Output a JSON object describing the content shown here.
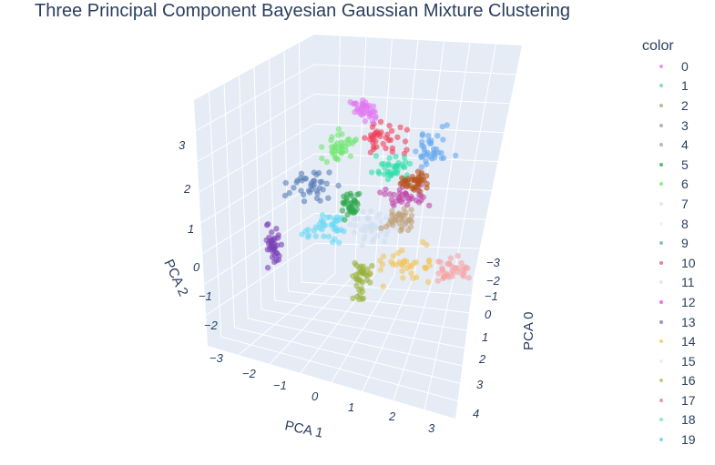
{
  "chart_data": {
    "type": "scatter",
    "title": "Three Principal Component Bayesian Gaussian Mixture Clustering",
    "axes": {
      "x": {
        "label": "PCA 0",
        "ticks": [
          "−3",
          "−2",
          "−1",
          "0",
          "1",
          "2",
          "3",
          "4"
        ]
      },
      "y": {
        "label": "PCA 1",
        "ticks": [
          "−2",
          "−1",
          "0",
          "1",
          "2",
          "3"
        ]
      },
      "z": {
        "label": "PCA 2",
        "ticks": [
          "3",
          "2",
          "1",
          "0",
          "−1",
          "−2",
          "−3"
        ]
      }
    },
    "legend_title": "color",
    "legend_placement": "right",
    "series": [
      {
        "name": "0",
        "color": "#e377f2"
      },
      {
        "name": "1",
        "color": "#63d6b2"
      },
      {
        "name": "2",
        "color": "#b8a47c"
      },
      {
        "name": "3",
        "color": "#9aa89a"
      },
      {
        "name": "4",
        "color": "#a7a39f"
      },
      {
        "name": "5",
        "color": "#2fa84f"
      },
      {
        "name": "6",
        "color": "#6fe86f"
      },
      {
        "name": "7",
        "color": "#f4d6e8"
      },
      {
        "name": "8",
        "color": "#f2f0e0"
      },
      {
        "name": "9",
        "color": "#6fb0a8"
      },
      {
        "name": "10",
        "color": "#f05a7a"
      },
      {
        "name": "11",
        "color": "#f2d8ea"
      },
      {
        "name": "12",
        "color": "#f04adf"
      },
      {
        "name": "13",
        "color": "#7a7ea8"
      },
      {
        "name": "14",
        "color": "#f2c45a"
      },
      {
        "name": "15",
        "color": "#f2e6ec"
      },
      {
        "name": "16",
        "color": "#b2b86a"
      },
      {
        "name": "17",
        "color": "#e07aa0"
      },
      {
        "name": "18",
        "color": "#5cf0c0"
      },
      {
        "name": "19",
        "color": "#66c8e8"
      }
    ],
    "cluster_colors": [
      "#7b3fb5",
      "#5a7fb8",
      "#6fe86f",
      "#f03e56",
      "#2ee0a8",
      "#66a8f0",
      "#c04aa8",
      "#b5541c",
      "#66d8f5",
      "#f2c45a",
      "#f5a5a5",
      "#9ab03a",
      "#2fa84f",
      "#d0e0f0",
      "#c0a27c",
      "#e377f2"
    ]
  }
}
